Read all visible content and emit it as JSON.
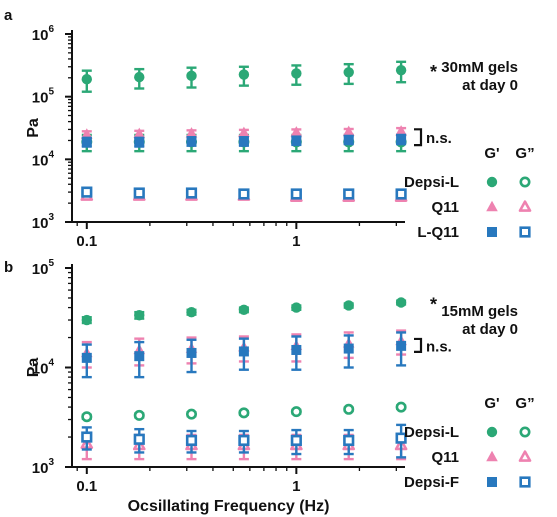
{
  "chart_data": [
    {
      "type": "scatter",
      "panel_label": "a",
      "title": "30mM gels\nat day 0",
      "xlabel": "",
      "ylabel": "Pa",
      "xscale": "log",
      "yscale": "log",
      "xlim": [
        0.085,
        3.3
      ],
      "ylim": [
        1000,
        1000000
      ],
      "xticks": [
        {
          "value": 0.1,
          "label": "0.1"
        },
        {
          "value": 1,
          "label": "1"
        }
      ],
      "yticks": [
        {
          "value": 1000,
          "base": "10",
          "exp": "3"
        },
        {
          "value": 10000,
          "base": "10",
          "exp": "4"
        },
        {
          "value": 100000,
          "base": "10",
          "exp": "5"
        },
        {
          "value": 1000000,
          "base": "10",
          "exp": "6"
        }
      ],
      "x": [
        0.1,
        0.178,
        0.316,
        0.562,
        1.0,
        1.778,
        3.162
      ],
      "legend_headers": [
        "G'",
        "G”"
      ],
      "series": [
        {
          "name": "Depsi-L",
          "modulus": "G'",
          "marker": "circle",
          "filled": true,
          "color": "#2BA876",
          "values": [
            190000,
            205000,
            215000,
            225000,
            235000,
            245000,
            265000
          ],
          "errors": [
            70000,
            70000,
            75000,
            75000,
            80000,
            85000,
            95000
          ]
        },
        {
          "name": "Depsi-L",
          "modulus": "G”",
          "marker": "circle",
          "filled": false,
          "color": "#2BA876",
          "values": [
            19000,
            19000,
            19000,
            19000,
            19000,
            19000,
            19000
          ],
          "errors": [
            5500,
            5500,
            5500,
            5500,
            5500,
            5500,
            5500
          ]
        },
        {
          "name": "Q11",
          "modulus": "G'",
          "marker": "triangle",
          "filled": true,
          "color": "#EE82B0",
          "values": [
            25000,
            25500,
            26000,
            26500,
            27000,
            27500,
            28000
          ],
          "errors": [
            3000,
            3000,
            3000,
            3000,
            3000,
            3000,
            3500
          ]
        },
        {
          "name": "Q11",
          "modulus": "G”",
          "marker": "triangle",
          "filled": false,
          "color": "#EE82B0",
          "values": [
            2600,
            2600,
            2600,
            2600,
            2500,
            2500,
            2500
          ],
          "errors": [
            300,
            300,
            300,
            300,
            300,
            300,
            300
          ]
        },
        {
          "name": "L-Q11",
          "modulus": "G'",
          "marker": "square",
          "filled": true,
          "color": "#2878BE",
          "values": [
            19000,
            19000,
            19500,
            19500,
            20000,
            20500,
            21000
          ],
          "errors": [
            3000,
            3000,
            3000,
            3000,
            3000,
            3000,
            3500
          ]
        },
        {
          "name": "L-Q11",
          "modulus": "G”",
          "marker": "square",
          "filled": false,
          "color": "#2878BE",
          "values": [
            3000,
            2900,
            2900,
            2800,
            2800,
            2800,
            2800
          ],
          "errors": [
            400,
            300,
            300,
            300,
            300,
            300,
            400
          ]
        }
      ],
      "annotations": [
        {
          "text": "*",
          "attach": "Depsi-L G'"
        },
        {
          "text": "n.s.",
          "attach": "Q11 / L-Q11 G'"
        }
      ],
      "legend_placement": "right"
    },
    {
      "type": "scatter",
      "panel_label": "b",
      "title": "15mM gels\nat day 0",
      "xlabel": "Ocsillating Frequency (Hz)",
      "ylabel": "Pa",
      "xscale": "log",
      "yscale": "log",
      "xlim": [
        0.085,
        3.3
      ],
      "ylim": [
        1000,
        100000
      ],
      "xticks": [
        {
          "value": 0.1,
          "label": "0.1"
        },
        {
          "value": 1,
          "label": "1"
        }
      ],
      "yticks": [
        {
          "value": 1000,
          "base": "10",
          "exp": "3"
        },
        {
          "value": 10000,
          "base": "10",
          "exp": "4"
        },
        {
          "value": 100000,
          "base": "10",
          "exp": "5"
        }
      ],
      "x": [
        0.1,
        0.178,
        0.316,
        0.562,
        1.0,
        1.778,
        3.162
      ],
      "legend_headers": [
        "G'",
        "G”"
      ],
      "series": [
        {
          "name": "Depsi-L",
          "modulus": "G'",
          "marker": "circle",
          "filled": true,
          "color": "#2BA876",
          "values": [
            30000,
            33500,
            36000,
            38000,
            40000,
            42000,
            45000
          ],
          "errors": [
            2000,
            2500,
            2000,
            2000,
            2000,
            2000,
            2000
          ]
        },
        {
          "name": "Depsi-L",
          "modulus": "G”",
          "marker": "circle",
          "filled": false,
          "color": "#2BA876",
          "values": [
            3200,
            3300,
            3400,
            3500,
            3600,
            3800,
            4000
          ],
          "errors": [
            150,
            150,
            150,
            150,
            150,
            150,
            150
          ]
        },
        {
          "name": "Q11",
          "modulus": "G'",
          "marker": "triangle",
          "filled": true,
          "color": "#EE82B0",
          "values": [
            14000,
            15000,
            15500,
            16000,
            16500,
            17500,
            18500
          ],
          "errors": [
            4000,
            4500,
            4500,
            4500,
            5000,
            5000,
            5000
          ]
        },
        {
          "name": "Q11",
          "modulus": "G”",
          "marker": "triangle",
          "filled": false,
          "color": "#EE82B0",
          "values": [
            1700,
            1650,
            1650,
            1650,
            1650,
            1650,
            1650
          ],
          "errors": [
            500,
            450,
            450,
            450,
            450,
            450,
            450
          ]
        },
        {
          "name": "Depsi-F",
          "modulus": "G'",
          "marker": "square",
          "filled": true,
          "color": "#2878BE",
          "values": [
            12500,
            13000,
            14000,
            14500,
            15000,
            15500,
            16500
          ],
          "errors": [
            4500,
            5000,
            5000,
            5000,
            5500,
            5500,
            6000
          ]
        },
        {
          "name": "Depsi-F",
          "modulus": "G”",
          "marker": "square",
          "filled": false,
          "color": "#2878BE",
          "values": [
            2000,
            1900,
            1850,
            1850,
            1850,
            1850,
            1950
          ],
          "errors": [
            500,
            500,
            450,
            450,
            500,
            500,
            700
          ]
        }
      ],
      "annotations": [
        {
          "text": "*",
          "attach": "Depsi-L G'"
        },
        {
          "text": "n.s.",
          "attach": "Q11 / Depsi-F G'"
        }
      ],
      "legend_placement": "right"
    }
  ]
}
